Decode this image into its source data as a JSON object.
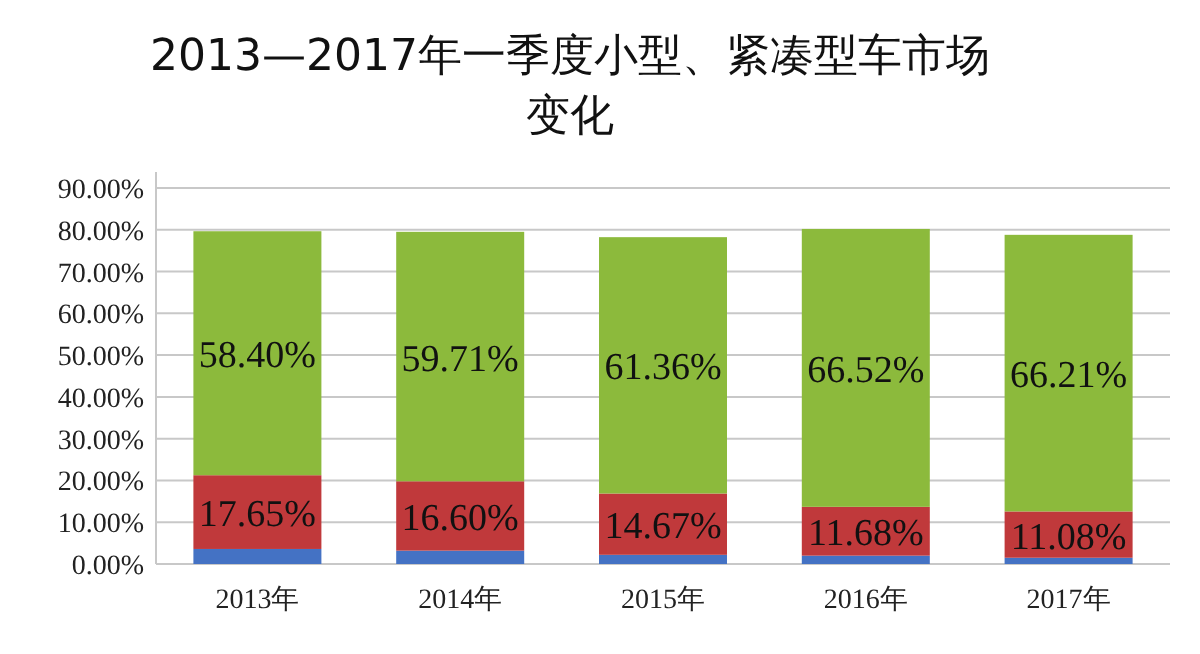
{
  "chart_data": {
    "type": "bar",
    "stacked": true,
    "title": "2013—2017年一季度小型、紧凑型车市场变化",
    "categories": [
      "2013年",
      "2014年",
      "2015年",
      "2016年",
      "2017年"
    ],
    "series": [
      {
        "color": "#4472c4",
        "values": [
          3.6,
          3.2,
          2.2,
          2.0,
          1.5
        ]
      },
      {
        "color": "#c0393b",
        "values": [
          17.65,
          16.6,
          14.67,
          11.68,
          11.08
        ],
        "value_labels": [
          "17.65%",
          "16.60%",
          "14.67%",
          "11.68%",
          "11.08%"
        ]
      },
      {
        "color": "#8cba3c",
        "values": [
          58.4,
          59.71,
          61.36,
          66.52,
          66.21
        ],
        "value_labels": [
          "58.40%",
          "59.71%",
          "61.36%",
          "66.52%",
          "66.21%"
        ]
      }
    ],
    "ylim": [
      0,
      90
    ],
    "yticks": [
      {
        "value": 0,
        "label": "0.00%"
      },
      {
        "value": 10,
        "label": "10.00%"
      },
      {
        "value": 20,
        "label": "20.00%"
      },
      {
        "value": 30,
        "label": "30.00%"
      },
      {
        "value": 40,
        "label": "40.00%"
      },
      {
        "value": 50,
        "label": "50.00%"
      },
      {
        "value": 60,
        "label": "60.00%"
      },
      {
        "value": 70,
        "label": "70.00%"
      },
      {
        "value": 80,
        "label": "80.00%"
      },
      {
        "value": 90,
        "label": "90.00%"
      }
    ],
    "grid": "y"
  }
}
